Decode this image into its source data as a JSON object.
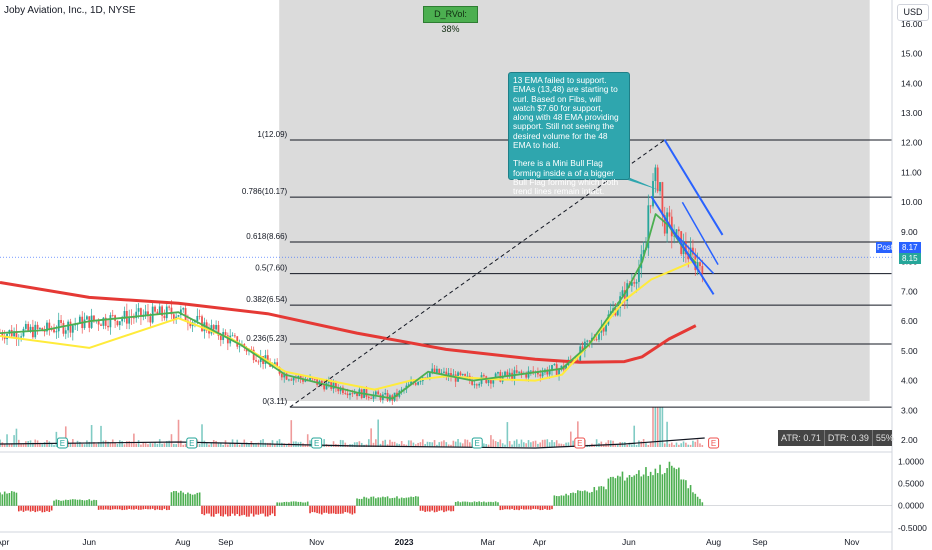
{
  "header": {
    "title": "Joby Aviation, Inc., 1D, NYSE",
    "indicator_badge": "D_RVol: 38%",
    "currency": "USD"
  },
  "callout": {
    "paragraph1": "13 EMA failed to support. EMAs (13,48) are starting to curl. Based on Fibs, will watch $7.60 for support, along with 48 EMA providing support. Still not seeing the desired volume for the 48 EMA to hold.",
    "paragraph2": "There is a Mini Bull Flag forming inside a of a bigger Bull Flag forming which both trend lines remain intact."
  },
  "price_tags": {
    "post_label": "Post",
    "post_value": "8.17",
    "last_value": "8.15"
  },
  "stats_box": {
    "atr": "ATR: 0.71",
    "dtr": "DTR: 0.39",
    "pct": "55%"
  },
  "earnings_marker": "E",
  "colors": {
    "ema13": "#4caf50",
    "ema48": "#ffeb3b",
    "ema200": "#e53935",
    "up": "#26a69a",
    "down": "#ef5350",
    "fib_zone": "#d5d5d5",
    "flag_lines": "#2962ff",
    "osc_pos": "#4caf50",
    "osc_neg": "#e53935"
  },
  "chart_data": {
    "type": "candlestick",
    "title": "Joby Aviation, Inc., 1D, NYSE",
    "x_tick_labels": [
      "Apr",
      "Jun",
      "Aug",
      "Sep",
      "Nov",
      "2023",
      "Mar",
      "Apr",
      "Jun",
      "Aug",
      "Sep",
      "Nov"
    ],
    "y_tick_labels": [
      "16.00",
      "15.00",
      "14.00",
      "13.00",
      "12.00",
      "11.00",
      "10.00",
      "9.00",
      "8.00",
      "7.00",
      "6.00",
      "5.00",
      "4.00",
      "3.00",
      "2.00"
    ],
    "ylim": [
      1.6,
      16.8
    ],
    "fib_levels": [
      {
        "label": "1(12.09)",
        "value": 12.09
      },
      {
        "label": "0.786(10.17)",
        "value": 10.17
      },
      {
        "label": "0.618(8.66)",
        "value": 8.66
      },
      {
        "label": "0.5(7.60)",
        "value": 7.6
      },
      {
        "label": "0.382(6.54)",
        "value": 6.54
      },
      {
        "label": "0.236(5.23)",
        "value": 5.23
      },
      {
        "label": "0(3.11)",
        "value": 3.11
      }
    ],
    "series": [
      {
        "name": "EMA 200",
        "points": [
          [
            0,
            7.3
          ],
          [
            0.1,
            6.8
          ],
          [
            0.2,
            6.6
          ],
          [
            0.3,
            6.25
          ],
          [
            0.4,
            5.6
          ],
          [
            0.5,
            5.05
          ],
          [
            0.6,
            4.72
          ],
          [
            0.65,
            4.62
          ],
          [
            0.7,
            4.64
          ],
          [
            0.72,
            4.8
          ],
          [
            0.75,
            5.4
          ],
          [
            0.78,
            5.85
          ]
        ]
      },
      {
        "name": "EMA 48",
        "points": [
          [
            0,
            5.5
          ],
          [
            0.1,
            5.1
          ],
          [
            0.2,
            6.1
          ],
          [
            0.26,
            5.4
          ],
          [
            0.32,
            4.3
          ],
          [
            0.36,
            4.05
          ],
          [
            0.42,
            3.7
          ],
          [
            0.46,
            4.0
          ],
          [
            0.5,
            4.15
          ],
          [
            0.55,
            4.05
          ],
          [
            0.6,
            4.0
          ],
          [
            0.63,
            4.2
          ],
          [
            0.66,
            5.2
          ],
          [
            0.7,
            6.7
          ],
          [
            0.73,
            7.4
          ],
          [
            0.765,
            7.85
          ],
          [
            0.78,
            8.05
          ]
        ]
      },
      {
        "name": "EMA 13",
        "points": [
          [
            0,
            5.6
          ],
          [
            0.05,
            5.7
          ],
          [
            0.1,
            6.0
          ],
          [
            0.2,
            6.3
          ],
          [
            0.27,
            5.2
          ],
          [
            0.32,
            4.2
          ],
          [
            0.4,
            3.6
          ],
          [
            0.44,
            3.4
          ],
          [
            0.48,
            4.3
          ],
          [
            0.53,
            4.0
          ],
          [
            0.58,
            4.2
          ],
          [
            0.63,
            4.4
          ],
          [
            0.66,
            5.2
          ],
          [
            0.7,
            6.9
          ],
          [
            0.72,
            8.0
          ],
          [
            0.735,
            9.6
          ],
          [
            0.75,
            9.2
          ],
          [
            0.765,
            8.5
          ],
          [
            0.78,
            7.95
          ]
        ]
      }
    ],
    "oscillator": {
      "ylim": [
        -0.55,
        1.15
      ],
      "y_tick_labels": [
        "1.0000",
        "0.5000",
        "0.0000",
        "-0.5000"
      ]
    }
  }
}
